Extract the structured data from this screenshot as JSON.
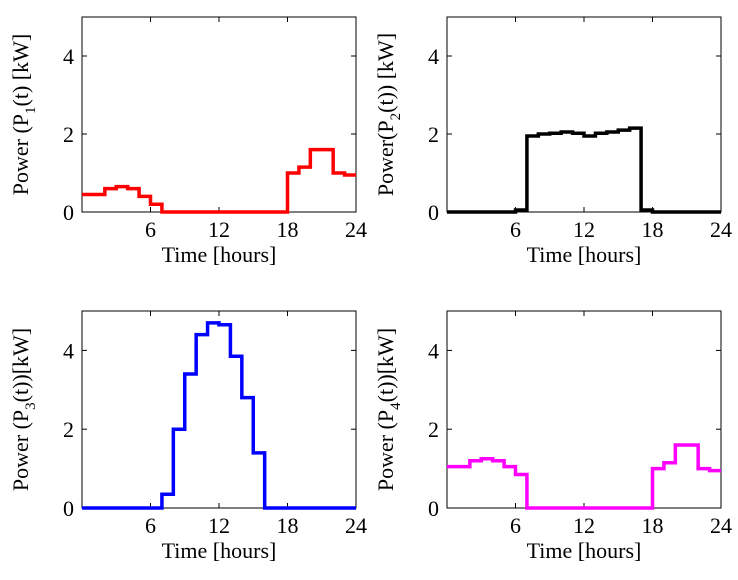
{
  "chart_data": [
    {
      "type": "line",
      "step": true,
      "xlabel": "Time [hours]",
      "ylabel_parts": [
        "Power (P",
        "1",
        "(t) [kW]"
      ],
      "xlim": [
        0,
        24
      ],
      "ylim": [
        0,
        5
      ],
      "xticks": [
        6,
        12,
        18,
        24
      ],
      "yticks": [
        0,
        2,
        4
      ],
      "grid": false,
      "color": "#ff0000",
      "x": [
        0,
        1,
        2,
        3,
        4,
        5,
        6,
        7,
        8,
        9,
        10,
        11,
        12,
        13,
        14,
        15,
        16,
        17,
        18,
        19,
        20,
        21,
        22,
        23
      ],
      "y": [
        0.45,
        0.45,
        0.6,
        0.65,
        0.6,
        0.4,
        0.2,
        0,
        0,
        0,
        0,
        0,
        0,
        0,
        0,
        0,
        0,
        0,
        1.0,
        1.15,
        1.6,
        1.6,
        1.0,
        0.95
      ]
    },
    {
      "type": "line",
      "step": true,
      "xlabel": "Time [hours]",
      "ylabel_parts": [
        "Power(P",
        "2",
        "(t)) [kW]"
      ],
      "xlim": [
        0,
        24
      ],
      "ylim": [
        0,
        5
      ],
      "xticks": [
        6,
        12,
        18,
        24
      ],
      "yticks": [
        0,
        2,
        4
      ],
      "grid": false,
      "color": "#000000",
      "x": [
        0,
        1,
        2,
        3,
        4,
        5,
        6,
        7,
        8,
        9,
        10,
        11,
        12,
        13,
        14,
        15,
        16,
        17,
        18,
        19,
        20,
        21,
        22,
        23
      ],
      "y": [
        0,
        0,
        0,
        0,
        0,
        0,
        0.05,
        1.95,
        2.0,
        2.02,
        2.05,
        2.02,
        1.95,
        2.02,
        2.05,
        2.1,
        2.15,
        0.05,
        0,
        0,
        0,
        0,
        0,
        0
      ]
    },
    {
      "type": "line",
      "step": true,
      "xlabel": "Time [hours]",
      "ylabel_parts": [
        "Power (P",
        "3",
        "(t))[kW]"
      ],
      "xlim": [
        0,
        24
      ],
      "ylim": [
        0,
        5
      ],
      "xticks": [
        6,
        12,
        18,
        24
      ],
      "yticks": [
        0,
        2,
        4
      ],
      "grid": false,
      "color": "#0000ff",
      "x": [
        0,
        1,
        2,
        3,
        4,
        5,
        6,
        7,
        8,
        9,
        10,
        11,
        12,
        13,
        14,
        15,
        16,
        17,
        18,
        19,
        20,
        21,
        22,
        23
      ],
      "y": [
        0,
        0,
        0,
        0,
        0,
        0,
        0,
        0.35,
        2.0,
        3.4,
        4.4,
        4.7,
        4.65,
        3.85,
        2.8,
        1.4,
        0,
        0,
        0,
        0,
        0,
        0,
        0,
        0
      ]
    },
    {
      "type": "line",
      "step": true,
      "xlabel": "Time [hours]",
      "ylabel_parts": [
        "Power (P",
        "4",
        "(t))[kW]"
      ],
      "xlim": [
        0,
        24
      ],
      "ylim": [
        0,
        5
      ],
      "xticks": [
        6,
        12,
        18,
        24
      ],
      "yticks": [
        0,
        2,
        4
      ],
      "grid": false,
      "color": "#ff00ff",
      "x": [
        0,
        1,
        2,
        3,
        4,
        5,
        6,
        7,
        8,
        9,
        10,
        11,
        12,
        13,
        14,
        15,
        16,
        17,
        18,
        19,
        20,
        21,
        22,
        23
      ],
      "y": [
        1.05,
        1.05,
        1.2,
        1.25,
        1.2,
        1.05,
        0.85,
        0,
        0,
        0,
        0,
        0,
        0,
        0,
        0,
        0,
        0,
        0,
        1.0,
        1.15,
        1.6,
        1.6,
        1.0,
        0.95
      ]
    }
  ]
}
